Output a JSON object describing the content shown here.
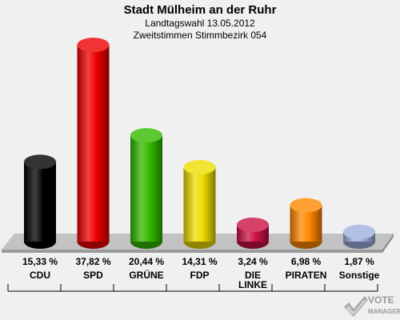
{
  "header": {
    "title": "Stadt Mülheim an der Ruhr",
    "subtitle1": "Landtagswahl 13.05.2012",
    "subtitle2": "Zweitstimmen Stimmbezirk 054"
  },
  "chart_data": {
    "type": "bar",
    "categories": [
      "CDU",
      "SPD",
      "GRÜNE",
      "FDP",
      "DIE LINKE",
      "PIRATEN",
      "Sonstige"
    ],
    "category_lines": [
      [
        "CDU"
      ],
      [
        "SPD"
      ],
      [
        "GRÜNE"
      ],
      [
        "FDP"
      ],
      [
        "DIE",
        "LINKE"
      ],
      [
        "PIRATEN"
      ],
      [
        "Sonstige"
      ]
    ],
    "values": [
      15.33,
      37.82,
      20.44,
      14.31,
      3.24,
      6.98,
      1.87
    ],
    "value_labels": [
      "15,33 %",
      "37,82 %",
      "20,44 %",
      "14,31 %",
      "3,24 %",
      "6,98 %",
      "1,87 %"
    ],
    "colors": [
      "#000000",
      "#ee0000",
      "#33bb00",
      "#eedd00",
      "#cc1144",
      "#ff8800",
      "#a0b0e0"
    ],
    "title": "Stadt Mülheim an der Ruhr",
    "grid": false
  },
  "logo": {
    "line1": "VOTE",
    "line2": "MANAGER"
  }
}
